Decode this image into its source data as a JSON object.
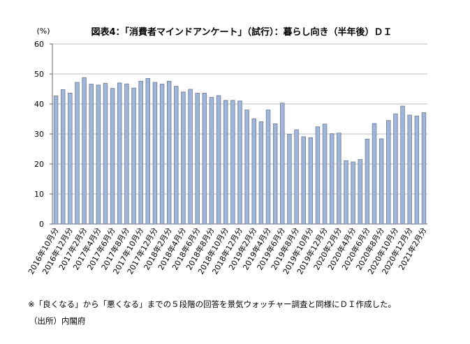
{
  "chart_data": {
    "type": "bar",
    "title": "図表4：「消費者マインドアンケート」（試行）：暮らし向き（半年後）ＤＩ",
    "y_unit": "(%)",
    "notes": [
      "※「良くなる」から「悪くなる」までの５段階の回答を景気ウォッチャー調査と同様にＤＩ作成した。",
      "（出所）内閣府"
    ],
    "categories": [
      "2016年10月分",
      null,
      "2016年12月分",
      null,
      "2017年2月分",
      null,
      "2017年4月分",
      null,
      "2017年6月分",
      null,
      "2017年8月分",
      null,
      "2017年10月分",
      null,
      "2017年12月分",
      null,
      "2018年2月分",
      null,
      "2018年4月分",
      null,
      "2018年6月分",
      null,
      "2018年8月分",
      null,
      "2018年10月分",
      null,
      "2018年12月分",
      null,
      "2019年2月分",
      null,
      "2019年4月分",
      null,
      "2019年6月分",
      null,
      "2019年8月分",
      null,
      "2019年10月分",
      null,
      "2019年12月分",
      null,
      "2020年2月分",
      null,
      "2020年4月分",
      null,
      "2020年6月分",
      null,
      "2020年8月分",
      null,
      "2020年10月分",
      null,
      "2020年12月分",
      null,
      "2021年2月分"
    ],
    "values": [
      42.7,
      44.8,
      43.6,
      47.2,
      48.8,
      46.6,
      46.3,
      46.9,
      45.2,
      47.0,
      46.7,
      45.3,
      47.6,
      48.5,
      47.2,
      46.6,
      47.6,
      45.9,
      44.0,
      44.9,
      43.6,
      43.6,
      42.2,
      42.8,
      41.2,
      41.2,
      41.0,
      38.0,
      35.1,
      34.1,
      38.0,
      33.4,
      40.3,
      29.9,
      31.4,
      29.1,
      28.8,
      32.4,
      33.3,
      30.1,
      30.3,
      21.1,
      20.7,
      21.5,
      28.3,
      33.5,
      28.4,
      34.5,
      36.7,
      39.3,
      36.3,
      36.0,
      37.1
    ],
    "color": "#9fb5da",
    "ylim": [
      0,
      60
    ],
    "yticks": [
      0,
      10,
      20,
      30,
      40,
      50,
      60
    ],
    "grid": true
  }
}
